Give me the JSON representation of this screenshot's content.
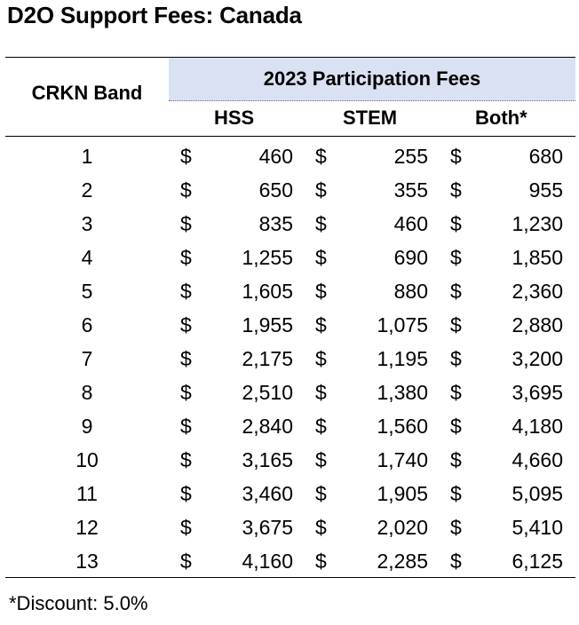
{
  "title": "D2O Support Fees: Canada",
  "table": {
    "band_header": "CRKN Band",
    "group_header": "2023 Participation Fees",
    "columns": [
      "HSS",
      "STEM",
      "Both*"
    ],
    "currency_symbol": "$",
    "rows": [
      {
        "band": "1",
        "hss": "460",
        "stem": "255",
        "both": "680"
      },
      {
        "band": "2",
        "hss": "650",
        "stem": "355",
        "both": "955"
      },
      {
        "band": "3",
        "hss": "835",
        "stem": "460",
        "both": "1,230"
      },
      {
        "band": "4",
        "hss": "1,255",
        "stem": "690",
        "both": "1,850"
      },
      {
        "band": "5",
        "hss": "1,605",
        "stem": "880",
        "both": "2,360"
      },
      {
        "band": "6",
        "hss": "1,955",
        "stem": "1,075",
        "both": "2,880"
      },
      {
        "band": "7",
        "hss": "2,175",
        "stem": "1,195",
        "both": "3,200"
      },
      {
        "band": "8",
        "hss": "2,510",
        "stem": "1,380",
        "both": "3,695"
      },
      {
        "band": "9",
        "hss": "2,840",
        "stem": "1,560",
        "both": "4,180"
      },
      {
        "band": "10",
        "hss": "3,165",
        "stem": "1,740",
        "both": "4,660"
      },
      {
        "band": "11",
        "hss": "3,460",
        "stem": "1,905",
        "both": "5,095"
      },
      {
        "band": "12",
        "hss": "3,675",
        "stem": "2,020",
        "both": "5,410"
      },
      {
        "band": "13",
        "hss": "4,160",
        "stem": "2,285",
        "both": "6,125"
      }
    ]
  },
  "footnote": "*Discount: 5.0%",
  "colors": {
    "header_fill": "#d9e1f2"
  }
}
